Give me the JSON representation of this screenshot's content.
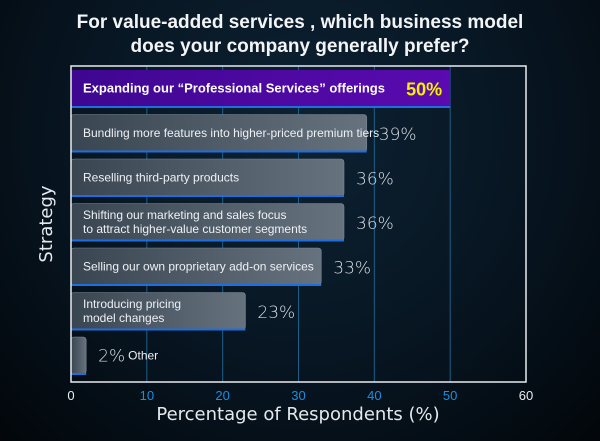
{
  "chart_data": {
    "type": "bar",
    "orientation": "horizontal",
    "title": [
      "For value-added services , which business model",
      "does your company generally prefer?"
    ],
    "xlabel": "Percentage of Respondents (%)",
    "ylabel": "Strategy",
    "xlim": [
      0,
      60
    ],
    "xticks": [
      0,
      10,
      20,
      30,
      40,
      50,
      60
    ],
    "grid": "vertical",
    "categories": [
      [
        "Expanding our “Professional Services” offerings"
      ],
      [
        "Bundling more features into higher-priced premium tiers"
      ],
      [
        "Reselling third-party products"
      ],
      [
        "Shifting our marketing and sales focus",
        "to attract higher-value customer segments"
      ],
      [
        "Selling our own proprietary add-on services"
      ],
      [
        "Introducing pricing",
        "model changes"
      ],
      [
        "Other"
      ]
    ],
    "values": [
      50,
      39,
      36,
      36,
      33,
      23,
      2
    ],
    "value_labels": [
      "50%",
      "39%",
      "36%",
      "36%",
      "33%",
      "23%",
      "2%"
    ],
    "highlight_index": 0,
    "colors": {
      "highlight": "#5a0aa8",
      "bar": "#4f5d6b",
      "bar_edge": "#1f6ee0",
      "highlight_value": "#f4f000",
      "grid": "#1d5f8a",
      "tick_blue": "#1a8fe0"
    }
  }
}
